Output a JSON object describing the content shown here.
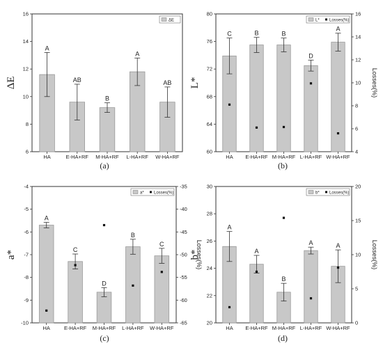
{
  "chart_data": [
    {
      "type": "bar",
      "panel": "(a)",
      "categories": [
        "HA",
        "E-HA+RF",
        "M-HA+RF",
        "L-HA+RF",
        "W-HA+RF"
      ],
      "ylabel": "ΔE",
      "ylim": [
        6,
        16
      ],
      "yticks": [
        6,
        8,
        10,
        12,
        14,
        16
      ],
      "series": [
        {
          "name": "ΔE",
          "values": [
            11.6,
            9.6,
            9.2,
            11.8,
            9.6
          ],
          "errors": [
            1.6,
            1.3,
            0.35,
            1.0,
            1.1
          ]
        }
      ],
      "letters": [
        "A",
        "AB",
        "B",
        "A",
        "AB"
      ],
      "legend": [
        "ΔE"
      ]
    },
    {
      "type": "bar",
      "panel": "(b)",
      "categories": [
        "HA",
        "E-HA+RF",
        "M-HA+RF",
        "L-HA+RF",
        "W-HA+RF"
      ],
      "ylabel": "L*",
      "ylim": [
        60,
        80
      ],
      "yticks": [
        60,
        64,
        68,
        72,
        76,
        80
      ],
      "y2label": "Losses(%)",
      "y2lim": [
        4,
        16
      ],
      "y2ticks": [
        4,
        6,
        8,
        10,
        12,
        14,
        16
      ],
      "series": [
        {
          "name": "L*",
          "values": [
            73.9,
            75.5,
            75.5,
            72.5,
            75.9
          ],
          "errors": [
            2.6,
            1.1,
            1.0,
            0.8,
            1.3
          ]
        },
        {
          "name": "Losses(%)",
          "axis": "right",
          "values": [
            8.1,
            6.1,
            6.15,
            9.95,
            5.6
          ]
        }
      ],
      "letters": [
        "C",
        "B",
        "B",
        "D",
        "A"
      ],
      "legend": [
        "L*",
        "Losses(%)"
      ]
    },
    {
      "type": "bar",
      "panel": "(c)",
      "categories": [
        "HA",
        "E-HA+RF",
        "M-HA+RF",
        "L-HA+RF",
        "W-HA+RF"
      ],
      "ylabel": "a*",
      "ylim": [
        -10,
        -4
      ],
      "yticks": [
        -10,
        -9,
        -8,
        -7,
        -6,
        -5,
        -4
      ],
      "y2label": "Losses(%)",
      "y2lim": [
        -65,
        -35
      ],
      "y2ticks": [
        -65,
        -60,
        -55,
        -50,
        -45,
        -40,
        -35
      ],
      "series": [
        {
          "name": "a*",
          "values": [
            -5.7,
            -7.3,
            -8.65,
            -6.65,
            -7.05
          ],
          "errors": [
            0.12,
            0.33,
            0.2,
            0.33,
            0.33
          ]
        },
        {
          "name": "Losses(%)",
          "axis": "right",
          "values": [
            -62.3,
            -52.3,
            -43.5,
            -56.8,
            -53.8
          ]
        }
      ],
      "letters": [
        "A",
        "C",
        "D",
        "B",
        "C"
      ],
      "legend": [
        "a*",
        "Losses(%)"
      ]
    },
    {
      "type": "bar",
      "panel": "(d)",
      "categories": [
        "HA",
        "E-HA+RF",
        "M-HA+RF",
        "L-HA+RF",
        "W-HA+RF"
      ],
      "ylabel": "b*",
      "ylim": [
        20,
        30
      ],
      "yticks": [
        20,
        22,
        24,
        26,
        28,
        30
      ],
      "y2label": "Losses(%)",
      "y2lim": [
        0,
        20
      ],
      "y2ticks": [
        0,
        5,
        10,
        15,
        20
      ],
      "series": [
        {
          "name": "b*",
          "values": [
            25.6,
            24.3,
            22.25,
            25.3,
            24.15
          ],
          "errors": [
            1.1,
            0.65,
            0.65,
            0.25,
            1.2
          ]
        },
        {
          "name": "Losses(%)",
          "axis": "right",
          "values": [
            2.3,
            7.5,
            15.4,
            3.6,
            8.1
          ]
        }
      ],
      "letters": [
        "A",
        "A",
        "B",
        "A",
        "A"
      ],
      "legend": [
        "b*",
        "Losses(%)"
      ]
    }
  ]
}
